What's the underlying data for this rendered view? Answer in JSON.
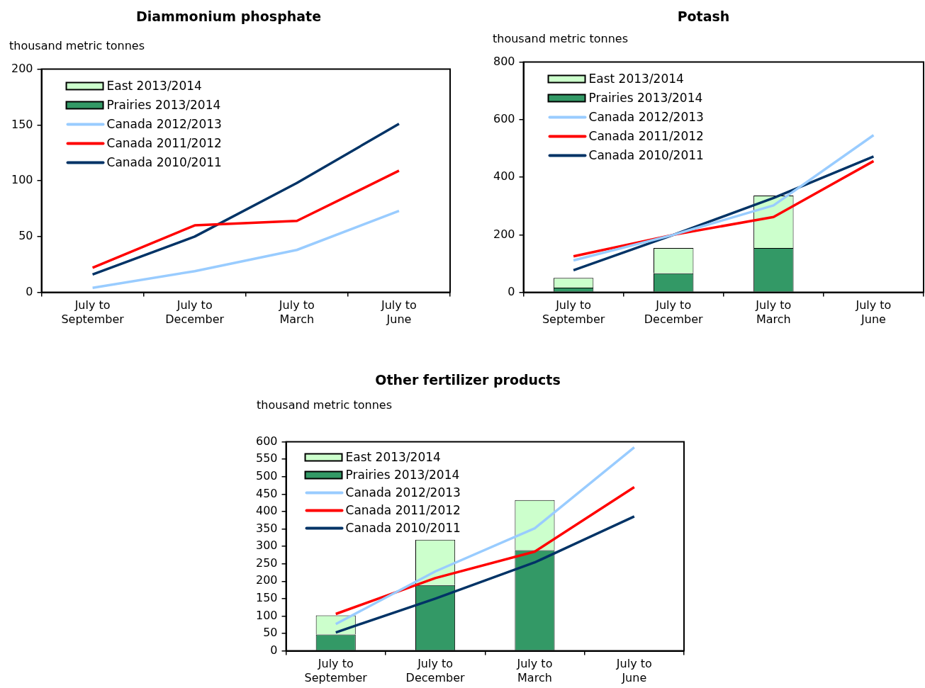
{
  "chart_data": [
    {
      "type": "bar",
      "stacked": true,
      "title": "Diammonium phosphate",
      "ylabel": "thousand metric tonnes",
      "categories": [
        "July to\nSeptember",
        "July to\nDecember",
        "July to\nMarch",
        "July to\nJune"
      ],
      "ylim": [
        0,
        200
      ],
      "yticks": [
        0,
        50,
        100,
        150,
        200
      ],
      "legend": "top left",
      "series": [
        {
          "name": "Prairies 2013/2014",
          "color": "#339966",
          "values": [
            null,
            null,
            null,
            null
          ]
        },
        {
          "name": "East 2013/2014",
          "color": "#ccffcc",
          "values": [
            null,
            null,
            null,
            null
          ]
        },
        {
          "name": "Canada 2012/2013",
          "type": "line",
          "color": "#99ccff",
          "values": [
            4,
            19,
            38,
            73
          ]
        },
        {
          "name": "Canada 2011/2012",
          "type": "line",
          "color": "#ff0000",
          "values": [
            22,
            60,
            64,
            109
          ]
        },
        {
          "name": "Canada 2010/2011",
          "type": "line",
          "color": "#003366",
          "values": [
            16,
            50,
            98,
            151
          ]
        }
      ]
    },
    {
      "type": "bar",
      "stacked": true,
      "title": "Potash",
      "ylabel": "thousand metric tonnes",
      "categories": [
        "July to\nSeptember",
        "July to\nDecember",
        "July to\nMarch",
        "July to\nJune"
      ],
      "ylim": [
        0,
        800
      ],
      "yticks": [
        0,
        200,
        400,
        600,
        800
      ],
      "legend": "top left",
      "series": [
        {
          "name": "Prairies 2013/2014",
          "color": "#339966",
          "values": [
            16,
            66,
            154,
            null
          ]
        },
        {
          "name": "East 2013/2014",
          "color": "#ccffcc",
          "values": [
            34,
            88,
            182,
            null
          ]
        },
        {
          "name": "Canada 2012/2013",
          "type": "line",
          "color": "#99ccff",
          "values": [
            111,
            200,
            302,
            546
          ]
        },
        {
          "name": "Canada 2011/2012",
          "type": "line",
          "color": "#ff0000",
          "values": [
            125,
            200,
            262,
            456
          ]
        },
        {
          "name": "Canada 2010/2011",
          "type": "line",
          "color": "#003366",
          "values": [
            77,
            200,
            328,
            472
          ]
        }
      ]
    },
    {
      "type": "bar",
      "stacked": true,
      "title": "Other fertilizer products",
      "ylabel": "thousand metric tonnes",
      "categories": [
        "July to\nSeptember",
        "July to\nDecember",
        "July to\nMarch",
        "July to\nJune"
      ],
      "ylim": [
        0,
        600
      ],
      "yticks": [
        0,
        50,
        100,
        150,
        200,
        250,
        300,
        350,
        400,
        450,
        500,
        550,
        600
      ],
      "legend": "top left",
      "series": [
        {
          "name": "Prairies 2013/2014",
          "color": "#339966",
          "values": [
            47,
            189,
            289,
            null
          ]
        },
        {
          "name": "East 2013/2014",
          "color": "#ccffcc",
          "values": [
            55,
            130,
            144,
            null
          ]
        },
        {
          "name": "Canada 2012/2013",
          "type": "line",
          "color": "#99ccff",
          "values": [
            77,
            228,
            352,
            584
          ]
        },
        {
          "name": "Canada 2011/2012",
          "type": "line",
          "color": "#ff0000",
          "values": [
            106,
            209,
            285,
            470
          ]
        },
        {
          "name": "Canada 2010/2011",
          "type": "line",
          "color": "#003366",
          "values": [
            53,
            150,
            254,
            386
          ]
        }
      ]
    }
  ]
}
